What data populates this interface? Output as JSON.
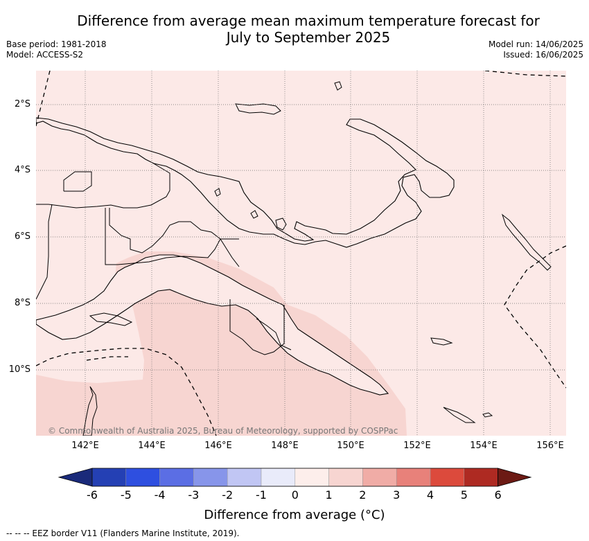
{
  "header": {
    "title_line1": "Difference from average mean maximum temperature forecast for",
    "title_line2": "July to September 2025",
    "base_period": "Base period: 1981-2018",
    "model": "Model: ACCESS-S2",
    "model_run": "Model run: 14/06/2025",
    "issued": "Issued: 16/06/2025"
  },
  "map": {
    "lon_ticks": [
      "142°E",
      "144°E",
      "146°E",
      "148°E",
      "150°E",
      "152°E",
      "154°E",
      "156°E"
    ],
    "lat_ticks": [
      "2°S",
      "4°S",
      "6°S",
      "8°S",
      "10°S"
    ],
    "copyright": "© Commonwealth of Australia 2025, Bureau of Meteorology, supported by COSPPac",
    "land_color": "#ffffff",
    "anomaly_0_1_color": "#fce9e7",
    "anomaly_1_2_color": "#f7d5d1"
  },
  "colorbar": {
    "ticks": [
      "-6",
      "-5",
      "-4",
      "-3",
      "-2",
      "-1",
      "0",
      "1",
      "2",
      "3",
      "4",
      "5",
      "6"
    ],
    "colors": [
      "#1a2a7a",
      "#2440b4",
      "#2e4fe0",
      "#5b6ee4",
      "#8795ea",
      "#c1c6f4",
      "#e9ebfa",
      "#fdeeeb",
      "#f7d5d1",
      "#f0aca6",
      "#e8817a",
      "#dc4a3c",
      "#ae2a22",
      "#6c1a14"
    ],
    "label": "Difference from average ($^\\circ$C)",
    "label_text": "Difference from average (°C)"
  },
  "legend": {
    "eez": "--  --  -- EEZ border V11 (Flanders Marine Institute, 2019)."
  }
}
